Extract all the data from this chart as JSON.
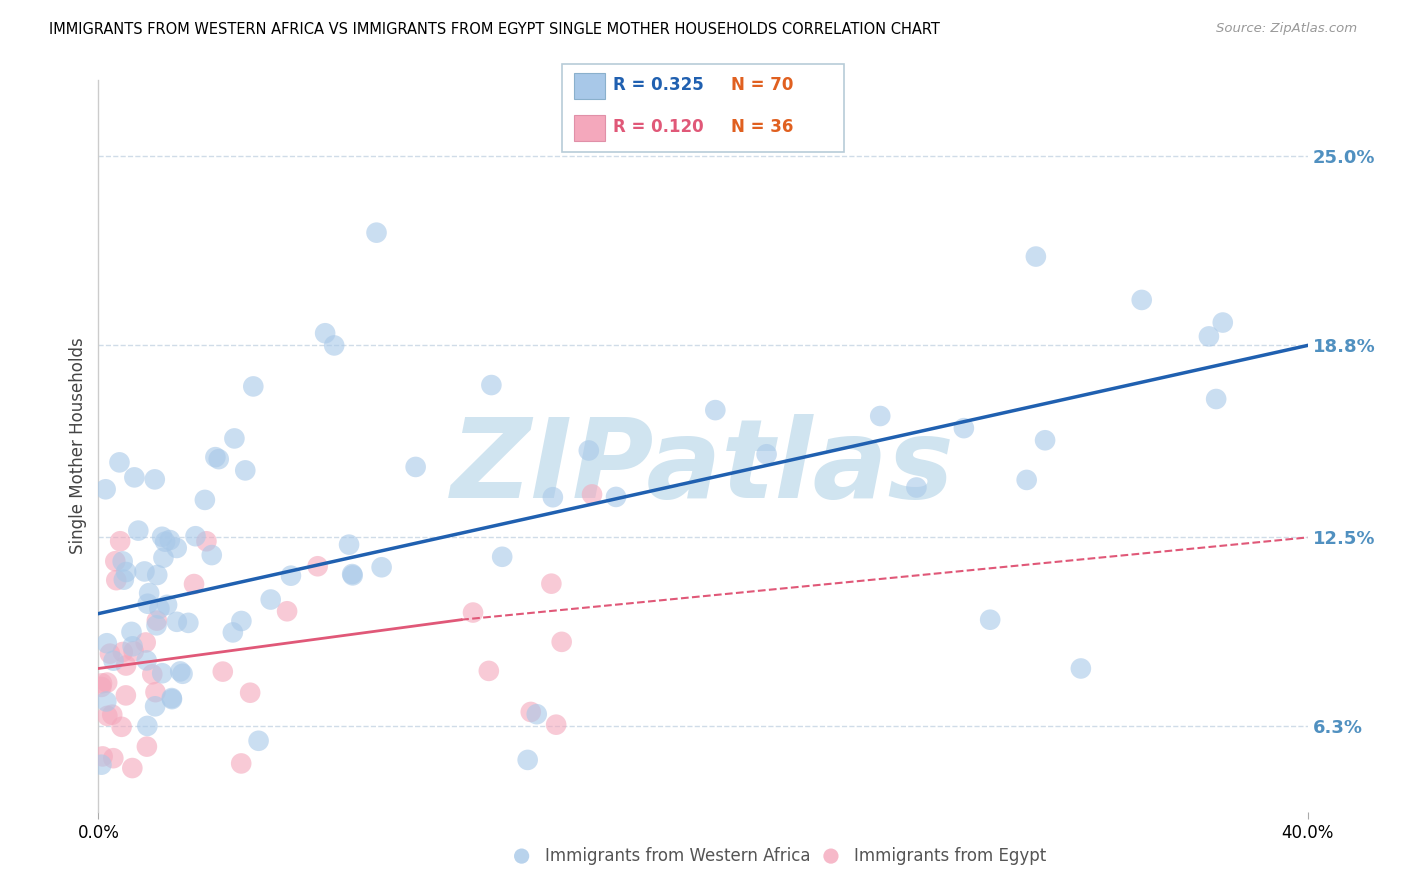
{
  "title": "IMMIGRANTS FROM WESTERN AFRICA VS IMMIGRANTS FROM EGYPT SINGLE MOTHER HOUSEHOLDS CORRELATION CHART",
  "source": "Source: ZipAtlas.com",
  "ylabel": "Single Mother Households",
  "y_ticks": [
    6.3,
    12.5,
    18.8,
    25.0
  ],
  "y_tick_labels": [
    "6.3%",
    "12.5%",
    "18.8%",
    "25.0%"
  ],
  "xlim": [
    0.0,
    40.0
  ],
  "ylim": [
    3.5,
    27.5
  ],
  "R_western": 0.325,
  "N_western": 70,
  "R_egypt": 0.12,
  "N_egypt": 36,
  "legend_label_western": "Immigrants from Western Africa",
  "legend_label_egypt": "Immigrants from Egypt",
  "color_western": "#a8c8e8",
  "color_egypt": "#f4a8bc",
  "color_line_western": "#2060b0",
  "color_line_egypt": "#e05878",
  "color_ytick": "#5090c0",
  "watermark": "ZIPatlas",
  "watermark_color": "#d0e4f0",
  "background_color": "#ffffff",
  "trendline_western_x0": 0.0,
  "trendline_western_y0": 10.0,
  "trendline_western_x1": 40.0,
  "trendline_western_y1": 18.8,
  "trendline_egypt_solid_x0": 0.0,
  "trendline_egypt_solid_y0": 8.2,
  "trendline_egypt_solid_x1": 12.0,
  "trendline_egypt_solid_y1": 9.8,
  "trendline_egypt_dash_x0": 12.0,
  "trendline_egypt_dash_y0": 9.8,
  "trendline_egypt_dash_x1": 40.0,
  "trendline_egypt_dash_y1": 12.5,
  "grid_color": "#d0dce8",
  "spine_color": "#cccccc"
}
